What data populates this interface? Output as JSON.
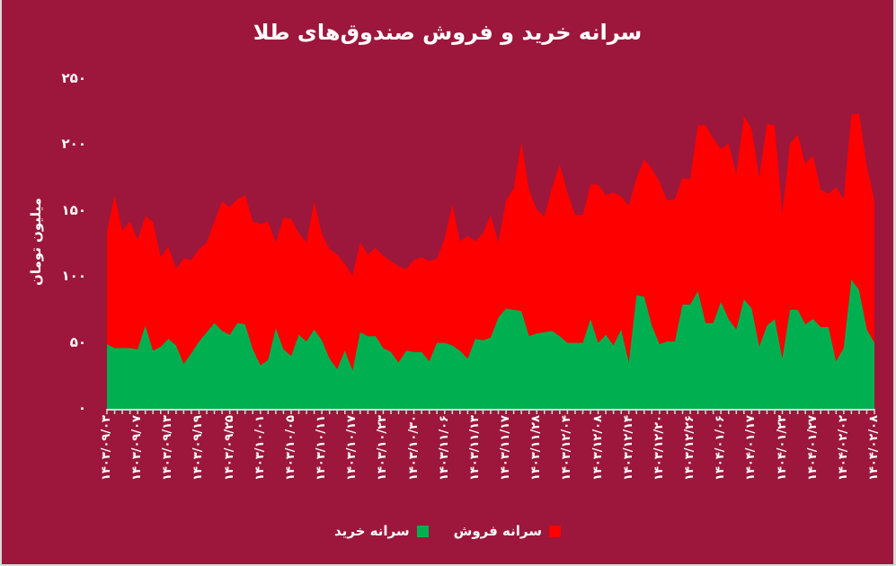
{
  "title": "سرانه خرید و فروش صندوق‌های طلا",
  "colors": {
    "background": "#9c173b",
    "buy": "#00b050",
    "sell": "#ff0000",
    "tick": "#d9d9d9"
  },
  "chart_data": {
    "type": "area",
    "stacked": true,
    "title": "سرانه خرید و فروش صندوق‌های طلا",
    "xlabel": "",
    "ylabel": "میلیون تومان",
    "ylim": [
      0,
      250
    ],
    "yticks": [
      "۰",
      "۵۰",
      "۱۰۰",
      "۱۵۰",
      "۲۰۰",
      "۲۵۰"
    ],
    "ytick_values": [
      0,
      50,
      100,
      150,
      200,
      250
    ],
    "grid": false,
    "legend_position": "bottom",
    "x_tick_labels": [
      "۱۴۰۳/۰۹/۰۳",
      "۱۴۰۳/۰۹/۰۷",
      "۱۴۰۳/۰۹/۱۳",
      "۱۴۰۳/۰۹/۱۹",
      "۱۴۰۳/۰۹/۲۵",
      "۱۴۰۳/۱۰/۰۱",
      "۱۴۰۳/۱۰/۰۵",
      "۱۴۰۳/۱۰/۱۱",
      "۱۴۰۳/۱۰/۱۷",
      "۱۴۰۳/۱۰/۲۳",
      "۱۴۰۳/۱۰/۳۰",
      "۱۴۰۳/۱۱/۰۶",
      "۱۴۰۳/۱۱/۱۳",
      "۱۴۰۳/۱۱/۱۷",
      "۱۴۰۳/۱۱/۲۸",
      "۱۴۰۳/۱۲/۰۴",
      "۱۴۰۳/۱۲/۰۸",
      "۱۴۰۳/۱۲/۱۴",
      "۱۴۰۳/۱۲/۲۰",
      "۱۴۰۳/۱۲/۲۶",
      "۱۴۰۴/۰۱/۰۶",
      "۱۴۰۴/۰۱/۱۷",
      "۱۴۰۴/۰۱/۲۳",
      "۱۴۰۴/۰۱/۲۷",
      "۱۴۰۴/۰۲/۰۲",
      "۱۴۰۴/۰۲/۰۸"
    ],
    "series": [
      {
        "name": "سرانه خرید",
        "color": "#00b050",
        "values": [
          49,
          46,
          46,
          46,
          45,
          63,
          44,
          47,
          53,
          48,
          34,
          42,
          51,
          58,
          65,
          59,
          56,
          65,
          64,
          45,
          33,
          37,
          61,
          45,
          40,
          56,
          51,
          60,
          52,
          38,
          30,
          44,
          29,
          58,
          55,
          55,
          46,
          43,
          35,
          44,
          43,
          43,
          36,
          50,
          50,
          48,
          44,
          38,
          53,
          52,
          54,
          69,
          76,
          75,
          74,
          55,
          57,
          58,
          59,
          55,
          50,
          50,
          50,
          68,
          50,
          56,
          48,
          60,
          35,
          86,
          85,
          63,
          49,
          51,
          51,
          79,
          79,
          89,
          65,
          65,
          81,
          68,
          60,
          83,
          76,
          47,
          63,
          68,
          38,
          75,
          75,
          64,
          68,
          62,
          62,
          36,
          46,
          98,
          90,
          60,
          50
        ]
      },
      {
        "name": "سرانه فروش",
        "color": "#ff0000",
        "values": [
          85,
          116,
          89,
          96,
          83,
          83,
          98,
          68,
          70,
          58,
          80,
          71,
          70,
          68,
          77,
          98,
          97,
          94,
          98,
          97,
          107,
          105,
          65,
          100,
          104,
          77,
          75,
          97,
          81,
          83,
          87,
          66,
          72,
          68,
          62,
          67,
          70,
          69,
          73,
          62,
          70,
          72,
          76,
          64,
          79,
          107,
          83,
          93,
          74,
          81,
          93,
          57,
          82,
          92,
          128,
          111,
          94,
          88,
          109,
          130,
          114,
          97,
          97,
          102,
          120,
          106,
          116,
          101,
          119,
          89,
          104,
          119,
          123,
          107,
          108,
          96,
          95,
          126,
          150,
          140,
          116,
          133,
          118,
          139,
          136,
          128,
          153,
          147,
          110,
          126,
          133,
          122,
          124,
          104,
          101,
          132,
          113,
          125,
          134,
          124,
          108
        ]
      }
    ]
  },
  "legend": {
    "buy_label": "سرانه خرید",
    "sell_label": "سرانه فروش"
  }
}
